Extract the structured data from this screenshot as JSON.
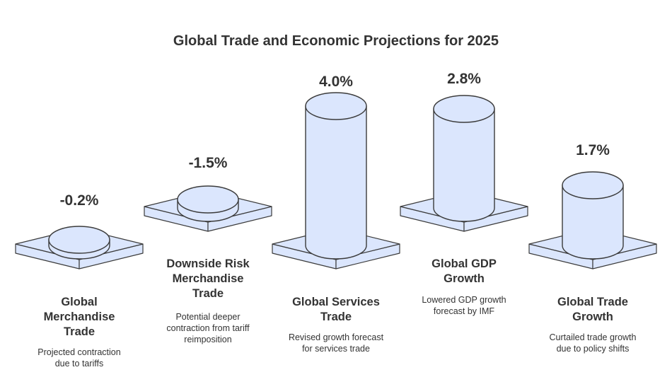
{
  "chart_data": {
    "type": "bar",
    "title": "Global Trade and Economic Projections for 2025",
    "categories": [
      "Global Merchandise Trade",
      "Downside Risk Merchandise Trade",
      "Global Services Trade",
      "Global GDP Growth",
      "Global Trade Growth"
    ],
    "values": [
      -0.2,
      -1.5,
      4.0,
      2.8,
      1.7
    ],
    "unit": "%",
    "value_labels": [
      "-0.2%",
      "-1.5%",
      "4.0%",
      "2.8%",
      "1.7%"
    ],
    "category_lines": [
      [
        "Global",
        "Merchandise",
        "Trade"
      ],
      [
        "Downside Risk",
        "Merchandise",
        "Trade"
      ],
      [
        "Global Services",
        "Trade"
      ],
      [
        "Global GDP",
        "Growth"
      ],
      [
        "Global Trade",
        "Growth"
      ]
    ],
    "descriptions": [
      [
        "Projected contraction",
        "due to tariffs"
      ],
      [
        "Potential deeper",
        "contraction from tariff",
        "reimposition"
      ],
      [
        "Revised growth forecast",
        "for services trade"
      ],
      [
        "Lowered GDP growth",
        "forecast by IMF"
      ],
      [
        "Curtailed trade growth",
        "due to policy shifts"
      ]
    ],
    "colors": {
      "fill": "#dbe6fd",
      "stroke": "#3b3b3b",
      "text": "#333333"
    }
  }
}
